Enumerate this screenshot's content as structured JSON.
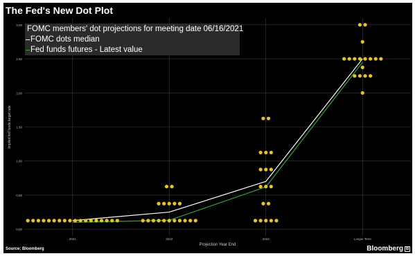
{
  "title": "The Fed's New Dot Plot",
  "source": "Source: Bloomberg",
  "brand": "Bloomberg",
  "brand_icon": "bloomberg-logo-icon",
  "colors": {
    "background": "#000000",
    "dots": "#e8c51b",
    "median": "#ffffff",
    "futures": "#2aa830",
    "grid": "#3a3a3a"
  },
  "legend": [
    {
      "label": "FOMC members' dot projections for meeting date 06/16/2021",
      "marker": "dot"
    },
    {
      "label": "FOMC dots median",
      "marker": "white-line"
    },
    {
      "label": "Fed funds futures - Latest value",
      "marker": "green-line"
    }
  ],
  "chart_data": {
    "type": "scatter",
    "title": "The Fed's New Dot Plot",
    "xlabel": "Projection Year End",
    "ylabel": "Implied fed funds target rate",
    "categories": [
      "2021",
      "2022",
      "2023",
      "Longer Term"
    ],
    "ylim": [
      -0.1,
      3.1
    ],
    "yticks": [
      "0.00",
      "0.50",
      "1.00",
      "1.50",
      "2.00",
      "2.50",
      "3.00"
    ],
    "grid": true,
    "legend_position": "top-left",
    "dot_projections": [
      {
        "year": "2021",
        "rate": 0.125,
        "count": 18
      },
      {
        "year": "2022",
        "rate": 0.125,
        "count": 11
      },
      {
        "year": "2022",
        "rate": 0.375,
        "count": 5
      },
      {
        "year": "2022",
        "rate": 0.625,
        "count": 2
      },
      {
        "year": "2023",
        "rate": 0.125,
        "count": 5
      },
      {
        "year": "2023",
        "rate": 0.375,
        "count": 2
      },
      {
        "year": "2023",
        "rate": 0.625,
        "count": 3
      },
      {
        "year": "2023",
        "rate": 0.875,
        "count": 3
      },
      {
        "year": "2023",
        "rate": 1.125,
        "count": 3
      },
      {
        "year": "2023",
        "rate": 1.625,
        "count": 2
      },
      {
        "year": "Longer Term",
        "rate": 2.0,
        "count": 1
      },
      {
        "year": "Longer Term",
        "rate": 2.25,
        "count": 4
      },
      {
        "year": "Longer Term",
        "rate": 2.375,
        "count": 1
      },
      {
        "year": "Longer Term",
        "rate": 2.5,
        "count": 8
      },
      {
        "year": "Longer Term",
        "rate": 2.75,
        "count": 1
      },
      {
        "year": "Longer Term",
        "rate": 3.0,
        "count": 2
      }
    ],
    "series": [
      {
        "name": "FOMC dots median",
        "values": [
          0.125,
          0.25,
          0.7,
          2.5
        ]
      },
      {
        "name": "Fed funds futures - Latest value",
        "values": [
          0.1,
          0.13,
          0.62,
          2.45
        ]
      }
    ]
  }
}
